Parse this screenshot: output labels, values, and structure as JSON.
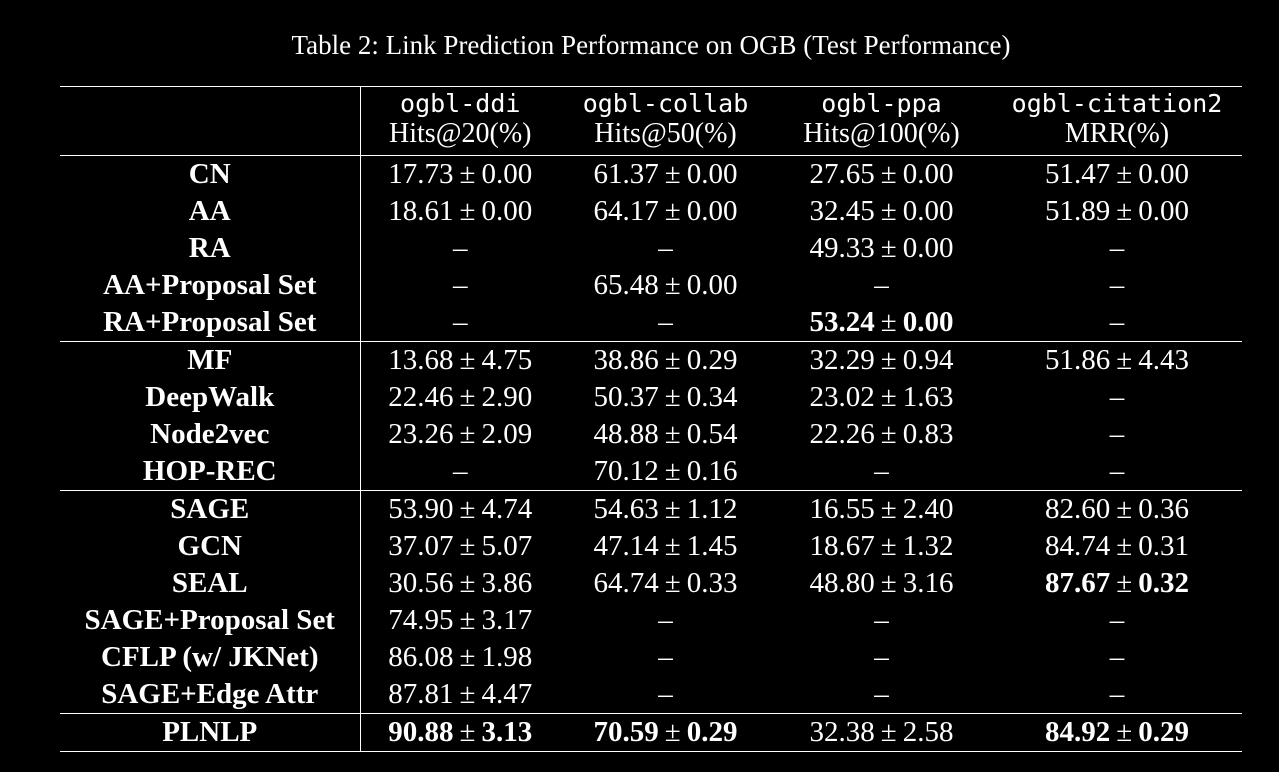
{
  "caption": "Table 2: Link Prediction Performance on OGB (Test Performance)",
  "columns": [
    {
      "dataset": "ogbl-ddi",
      "metric": "Hits@20(%)"
    },
    {
      "dataset": "ogbl-collab",
      "metric": "Hits@50(%)"
    },
    {
      "dataset": "ogbl-ppa",
      "metric": "Hits@100(%)"
    },
    {
      "dataset": "ogbl-citation2",
      "metric": "MRR(%)"
    }
  ],
  "groups": [
    {
      "rows": [
        {
          "method": "CN",
          "cells": [
            {
              "mean": "17.73",
              "std": "0.00"
            },
            {
              "mean": "61.37",
              "std": "0.00"
            },
            {
              "mean": "27.65",
              "std": "0.00"
            },
            {
              "mean": "51.47",
              "std": "0.00"
            }
          ]
        },
        {
          "method": "AA",
          "cells": [
            {
              "mean": "18.61",
              "std": "0.00"
            },
            {
              "mean": "64.17",
              "std": "0.00"
            },
            {
              "mean": "32.45",
              "std": "0.00"
            },
            {
              "mean": "51.89",
              "std": "0.00"
            }
          ]
        },
        {
          "method": "RA",
          "cells": [
            null,
            null,
            {
              "mean": "49.33",
              "std": "0.00"
            },
            null
          ]
        },
        {
          "method": "AA+Proposal Set",
          "cells": [
            null,
            {
              "mean": "65.48",
              "std": "0.00"
            },
            null,
            null
          ]
        },
        {
          "method": "RA+Proposal Set",
          "cells": [
            null,
            null,
            {
              "mean": "53.24",
              "std": "0.00",
              "bold": true
            },
            null
          ]
        }
      ]
    },
    {
      "rows": [
        {
          "method": "MF",
          "cells": [
            {
              "mean": "13.68",
              "std": "4.75"
            },
            {
              "mean": "38.86",
              "std": "0.29"
            },
            {
              "mean": "32.29",
              "std": "0.94"
            },
            {
              "mean": "51.86",
              "std": "4.43"
            }
          ]
        },
        {
          "method": "DeepWalk",
          "cells": [
            {
              "mean": "22.46",
              "std": "2.90"
            },
            {
              "mean": "50.37",
              "std": "0.34"
            },
            {
              "mean": "23.02",
              "std": "1.63"
            },
            null
          ]
        },
        {
          "method": "Node2vec",
          "cells": [
            {
              "mean": "23.26",
              "std": "2.09"
            },
            {
              "mean": "48.88",
              "std": "0.54"
            },
            {
              "mean": "22.26",
              "std": "0.83"
            },
            null
          ]
        },
        {
          "method": "HOP-REC",
          "cells": [
            null,
            {
              "mean": "70.12",
              "std": "0.16"
            },
            null,
            null
          ]
        }
      ]
    },
    {
      "rows": [
        {
          "method": "SAGE",
          "cells": [
            {
              "mean": "53.90",
              "std": "4.74"
            },
            {
              "mean": "54.63",
              "std": "1.12"
            },
            {
              "mean": "16.55",
              "std": "2.40"
            },
            {
              "mean": "82.60",
              "std": "0.36"
            }
          ]
        },
        {
          "method": "GCN",
          "cells": [
            {
              "mean": "37.07",
              "std": "5.07"
            },
            {
              "mean": "47.14",
              "std": "1.45"
            },
            {
              "mean": "18.67",
              "std": "1.32"
            },
            {
              "mean": "84.74",
              "std": "0.31"
            }
          ]
        },
        {
          "method": "SEAL",
          "cells": [
            {
              "mean": "30.56",
              "std": "3.86"
            },
            {
              "mean": "64.74",
              "std": "0.33"
            },
            {
              "mean": "48.80",
              "std": "3.16"
            },
            {
              "mean": "87.67",
              "std": "0.32",
              "bold": true
            }
          ]
        },
        {
          "method": "SAGE+Proposal Set",
          "cells": [
            {
              "mean": "74.95",
              "std": "3.17"
            },
            null,
            null,
            null
          ]
        },
        {
          "method": "CFLP (w/ JKNet)",
          "cells": [
            {
              "mean": "86.08",
              "std": "1.98"
            },
            null,
            null,
            null
          ]
        },
        {
          "method": "SAGE+Edge Attr",
          "cells": [
            {
              "mean": "87.81",
              "std": "4.47"
            },
            null,
            null,
            null
          ]
        }
      ]
    },
    {
      "rows": [
        {
          "method": "PLNLP",
          "cells": [
            {
              "mean": "90.88",
              "std": "3.13",
              "bold": true
            },
            {
              "mean": "70.59",
              "std": "0.29",
              "bold": true
            },
            {
              "mean": "32.38",
              "std": "2.58"
            },
            {
              "mean": "84.92",
              "std": "0.29",
              "bold": true
            }
          ]
        }
      ]
    }
  ],
  "symbols": {
    "plus_minus": "±",
    "missing": "–"
  }
}
